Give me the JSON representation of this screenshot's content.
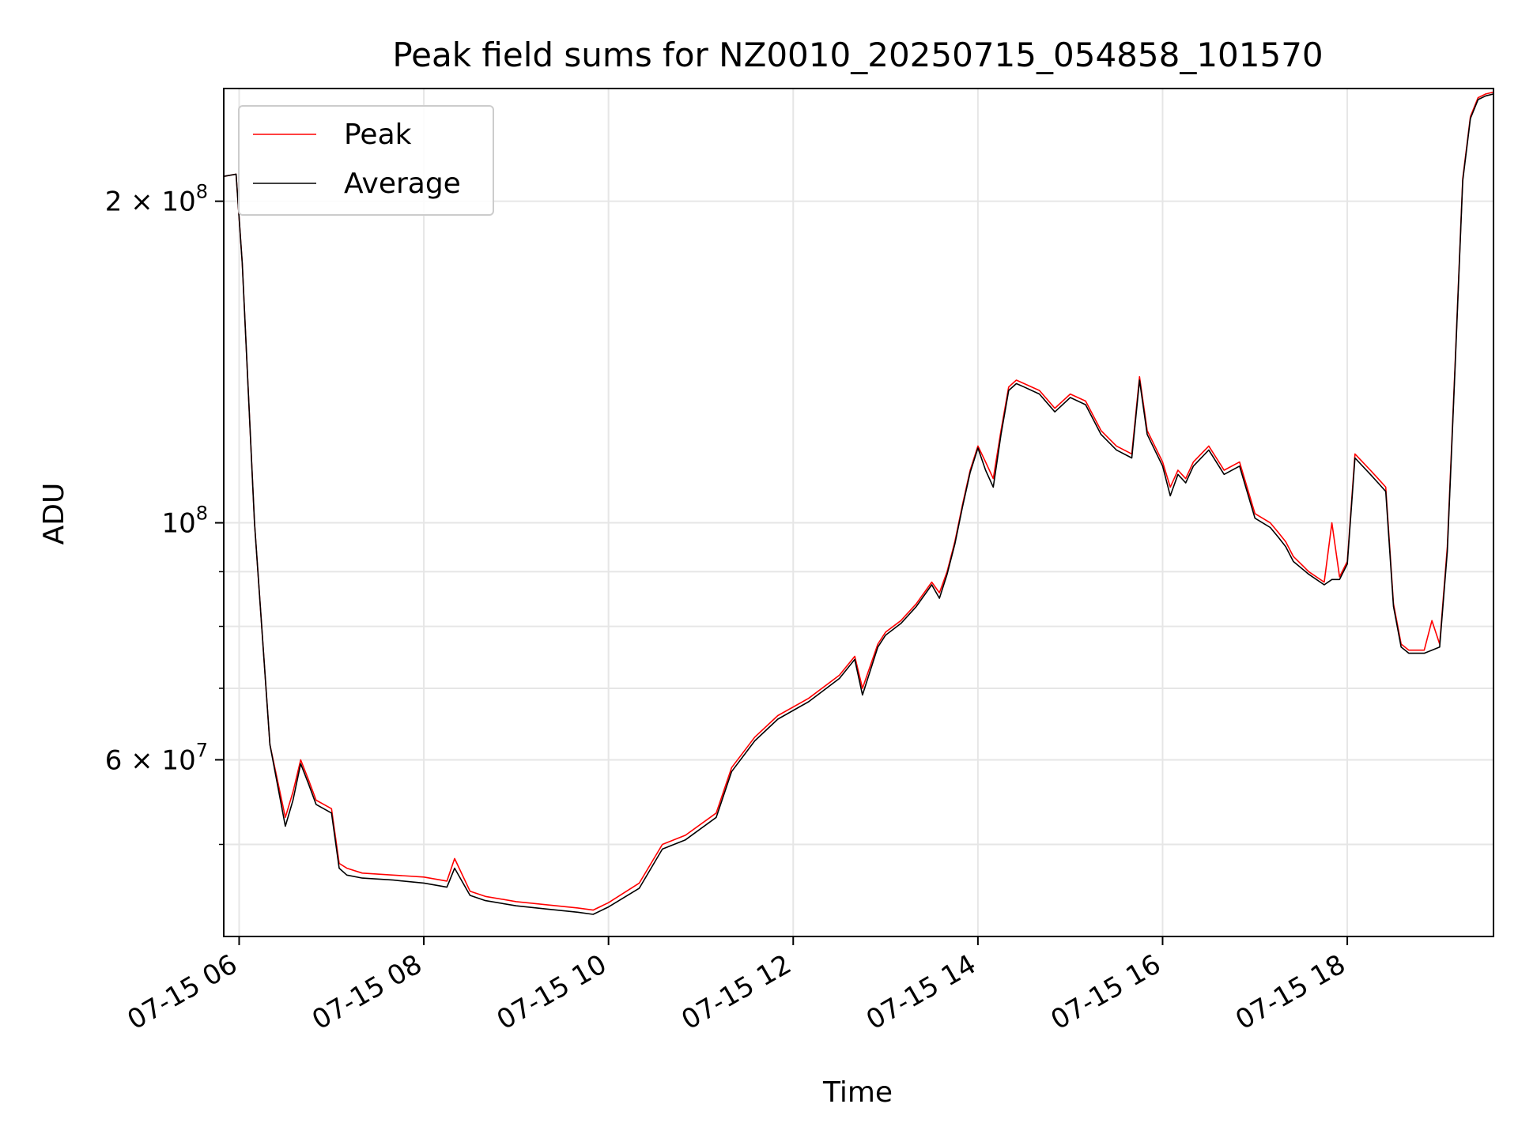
{
  "chart_data": {
    "type": "line",
    "title": "Peak field sums for NZ0010_20250715_054858_101570",
    "xlabel": "Time",
    "ylabel": "ADU",
    "yscale": "log",
    "grid": true,
    "legend_position": "top-left",
    "xlim": [
      "07-15 05:50",
      "07-15 19:35"
    ],
    "ylim": [
      41000000,
      255000000
    ],
    "x_ticks": [
      {
        "x": "07-15 06:00",
        "label": "07-15 06"
      },
      {
        "x": "07-15 08:00",
        "label": "07-15 08"
      },
      {
        "x": "07-15 10:00",
        "label": "07-15 10"
      },
      {
        "x": "07-15 12:00",
        "label": "07-15 12"
      },
      {
        "x": "07-15 14:00",
        "label": "07-15 14"
      },
      {
        "x": "07-15 16:00",
        "label": "07-15 16"
      },
      {
        "x": "07-15 18:00",
        "label": "07-15 18"
      }
    ],
    "y_ticks_major": [
      {
        "y": 60000000,
        "label": "6 × 10",
        "exp": "7"
      },
      {
        "y": 100000000,
        "label": "10",
        "exp": "8"
      },
      {
        "y": 200000000,
        "label": "2 × 10",
        "exp": "8"
      }
    ],
    "y_ticks_minor": [
      50000000,
      70000000,
      80000000,
      90000000
    ],
    "series": [
      {
        "name": "Peak",
        "color": "#ff0000",
        "x": [
          "07-15 05:50",
          "07-15 05:58",
          "07-15 06:02",
          "07-15 06:10",
          "07-15 06:20",
          "07-15 06:30",
          "07-15 06:35",
          "07-15 06:40",
          "07-15 06:45",
          "07-15 06:50",
          "07-15 07:00",
          "07-15 07:05",
          "07-15 07:10",
          "07-15 07:20",
          "07-15 07:40",
          "07-15 08:00",
          "07-15 08:15",
          "07-15 08:20",
          "07-15 08:30",
          "07-15 08:40",
          "07-15 09:00",
          "07-15 09:20",
          "07-15 09:40",
          "07-15 09:50",
          "07-15 10:00",
          "07-15 10:20",
          "07-15 10:35",
          "07-15 10:50",
          "07-15 11:10",
          "07-15 11:20",
          "07-15 11:35",
          "07-15 11:50",
          "07-15 12:10",
          "07-15 12:30",
          "07-15 12:40",
          "07-15 12:45",
          "07-15 12:55",
          "07-15 13:00",
          "07-15 13:10",
          "07-15 13:20",
          "07-15 13:30",
          "07-15 13:35",
          "07-15 13:40",
          "07-15 13:45",
          "07-15 13:50",
          "07-15 13:55",
          "07-15 14:00",
          "07-15 14:05",
          "07-15 14:10",
          "07-15 14:15",
          "07-15 14:20",
          "07-15 14:25",
          "07-15 14:30",
          "07-15 14:40",
          "07-15 14:50",
          "07-15 15:00",
          "07-15 15:10",
          "07-15 15:20",
          "07-15 15:30",
          "07-15 15:40",
          "07-15 15:45",
          "07-15 15:50",
          "07-15 16:00",
          "07-15 16:05",
          "07-15 16:10",
          "07-15 16:15",
          "07-15 16:20",
          "07-15 16:30",
          "07-15 16:40",
          "07-15 16:50",
          "07-15 17:00",
          "07-15 17:10",
          "07-15 17:15",
          "07-15 17:20",
          "07-15 17:25",
          "07-15 17:35",
          "07-15 17:45",
          "07-15 17:50",
          "07-15 17:55",
          "07-15 18:00",
          "07-15 18:05",
          "07-15 18:15",
          "07-15 18:20",
          "07-15 18:25",
          "07-15 18:30",
          "07-15 18:35",
          "07-15 18:40",
          "07-15 18:50",
          "07-15 18:55",
          "07-15 19:00",
          "07-15 19:05",
          "07-15 19:10",
          "07-15 19:15",
          "07-15 19:20",
          "07-15 19:25",
          "07-15 19:30",
          "07-15 19:35"
        ],
        "values": [
          211000000,
          212000000,
          175000000,
          100000000,
          62000000,
          53000000,
          56000000,
          60000000,
          57500000,
          55000000,
          54000000,
          48000000,
          47500000,
          47000000,
          46800000,
          46600000,
          46200000,
          48500000,
          45200000,
          44700000,
          44200000,
          43900000,
          43600000,
          43400000,
          44100000,
          46000000,
          50000000,
          51000000,
          53500000,
          59000000,
          63000000,
          66000000,
          68500000,
          72000000,
          75000000,
          70000000,
          77000000,
          79000000,
          81000000,
          84000000,
          88000000,
          86000000,
          90000000,
          96000000,
          104000000,
          112000000,
          118000000,
          114000000,
          110000000,
          122000000,
          134000000,
          136000000,
          135000000,
          133000000,
          128000000,
          132000000,
          130000000,
          122000000,
          118000000,
          116000000,
          137000000,
          122000000,
          114000000,
          108000000,
          112000000,
          110000000,
          114000000,
          118000000,
          112000000,
          114000000,
          102000000,
          100000000,
          98000000,
          96000000,
          93000000,
          90000000,
          88000000,
          100000000,
          89000000,
          92000000,
          116000000,
          112000000,
          110000000,
          108000000,
          84000000,
          77000000,
          76000000,
          76000000,
          81000000,
          77000000,
          95000000,
          140000000,
          210000000,
          240000000,
          250000000,
          252000000,
          253000000
        ]
      },
      {
        "name": "Average",
        "color": "#000000",
        "x": [
          "07-15 05:50",
          "07-15 05:58",
          "07-15 06:02",
          "07-15 06:10",
          "07-15 06:20",
          "07-15 06:30",
          "07-15 06:35",
          "07-15 06:40",
          "07-15 06:45",
          "07-15 06:50",
          "07-15 07:00",
          "07-15 07:05",
          "07-15 07:10",
          "07-15 07:20",
          "07-15 07:40",
          "07-15 08:00",
          "07-15 08:15",
          "07-15 08:20",
          "07-15 08:30",
          "07-15 08:40",
          "07-15 09:00",
          "07-15 09:20",
          "07-15 09:40",
          "07-15 09:50",
          "07-15 10:00",
          "07-15 10:20",
          "07-15 10:35",
          "07-15 10:50",
          "07-15 11:10",
          "07-15 11:20",
          "07-15 11:35",
          "07-15 11:50",
          "07-15 12:10",
          "07-15 12:30",
          "07-15 12:40",
          "07-15 12:45",
          "07-15 12:55",
          "07-15 13:00",
          "07-15 13:10",
          "07-15 13:20",
          "07-15 13:30",
          "07-15 13:35",
          "07-15 13:40",
          "07-15 13:45",
          "07-15 13:50",
          "07-15 13:55",
          "07-15 14:00",
          "07-15 14:05",
          "07-15 14:10",
          "07-15 14:15",
          "07-15 14:20",
          "07-15 14:25",
          "07-15 14:30",
          "07-15 14:40",
          "07-15 14:50",
          "07-15 15:00",
          "07-15 15:10",
          "07-15 15:20",
          "07-15 15:30",
          "07-15 15:40",
          "07-15 15:45",
          "07-15 15:50",
          "07-15 16:00",
          "07-15 16:05",
          "07-15 16:10",
          "07-15 16:15",
          "07-15 16:20",
          "07-15 16:30",
          "07-15 16:40",
          "07-15 16:50",
          "07-15 17:00",
          "07-15 17:10",
          "07-15 17:15",
          "07-15 17:20",
          "07-15 17:25",
          "07-15 17:35",
          "07-15 17:45",
          "07-15 17:50",
          "07-15 17:55",
          "07-15 18:00",
          "07-15 18:05",
          "07-15 18:15",
          "07-15 18:20",
          "07-15 18:25",
          "07-15 18:30",
          "07-15 18:35",
          "07-15 18:40",
          "07-15 18:50",
          "07-15 18:55",
          "07-15 19:00",
          "07-15 19:05",
          "07-15 19:10",
          "07-15 19:15",
          "07-15 19:20",
          "07-15 19:25",
          "07-15 19:30",
          "07-15 19:35"
        ],
        "values": [
          211000000,
          212000000,
          175000000,
          100000000,
          62000000,
          52000000,
          55000000,
          59500000,
          57000000,
          54500000,
          53500000,
          47500000,
          46800000,
          46500000,
          46300000,
          46000000,
          45600000,
          47500000,
          44800000,
          44300000,
          43800000,
          43500000,
          43200000,
          43000000,
          43700000,
          45500000,
          49500000,
          50500000,
          53000000,
          58500000,
          62500000,
          65500000,
          68000000,
          71500000,
          74500000,
          69000000,
          76500000,
          78500000,
          80500000,
          83500000,
          87500000,
          85000000,
          89500000,
          95500000,
          103500000,
          111500000,
          117500000,
          112000000,
          108000000,
          121000000,
          133000000,
          135000000,
          134000000,
          132000000,
          127000000,
          131000000,
          129000000,
          121000000,
          117000000,
          115000000,
          136000000,
          121000000,
          113000000,
          106000000,
          111000000,
          109000000,
          113000000,
          117000000,
          111000000,
          113000000,
          101000000,
          99000000,
          97000000,
          95000000,
          92000000,
          89500000,
          87500000,
          88500000,
          88500000,
          91500000,
          115000000,
          111000000,
          109000000,
          107000000,
          83500000,
          76500000,
          75500000,
          75500000,
          76000000,
          76500000,
          94000000,
          139000000,
          209000000,
          239000000,
          249000000,
          251000000,
          252000000
        ]
      }
    ]
  }
}
